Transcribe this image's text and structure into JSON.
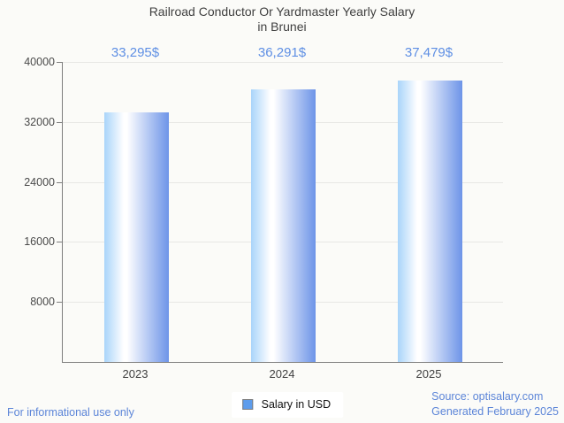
{
  "title": {
    "line1": "Railroad Conductor Or Yardmaster Yearly Salary",
    "line2": "in Brunei"
  },
  "chart_data": {
    "type": "bar",
    "categories": [
      "2023",
      "2024",
      "2025"
    ],
    "values": [
      33295,
      36291,
      37479
    ],
    "value_labels": [
      "33,295$",
      "36,291$",
      "37,479$"
    ],
    "series_name": "Salary in USD",
    "title": "Railroad Conductor Or Yardmaster Yearly Salary in Brunei",
    "xlabel": "",
    "ylabel": "",
    "ylim": [
      0,
      40000
    ],
    "yticks": [
      40000,
      32000,
      24000,
      16000,
      8000
    ],
    "ytick_labels": [
      "40000",
      "32000",
      "24000",
      "16000",
      "8000"
    ],
    "grid": "horizontal",
    "legend_position": "bottom-center"
  },
  "legend": {
    "label": "Salary in USD"
  },
  "footer": {
    "disclaimer": "For informational use only",
    "source": "Source: optisalary.com",
    "generated": "Generated February 2025"
  },
  "colors": {
    "background": "#fbfbf8",
    "title_text": "#3f3f3f",
    "value_label_blue": "#5e8fe4",
    "footer_blue": "#5c85d8",
    "bar_gradient_left": "#a9d4fa",
    "bar_gradient_middle": "#ffffff",
    "bar_gradient_right": "#6d94e8",
    "legend_marker": "#5d9cec",
    "axis_line": "#7e7e7e",
    "gridline": "#e8e8e5"
  }
}
